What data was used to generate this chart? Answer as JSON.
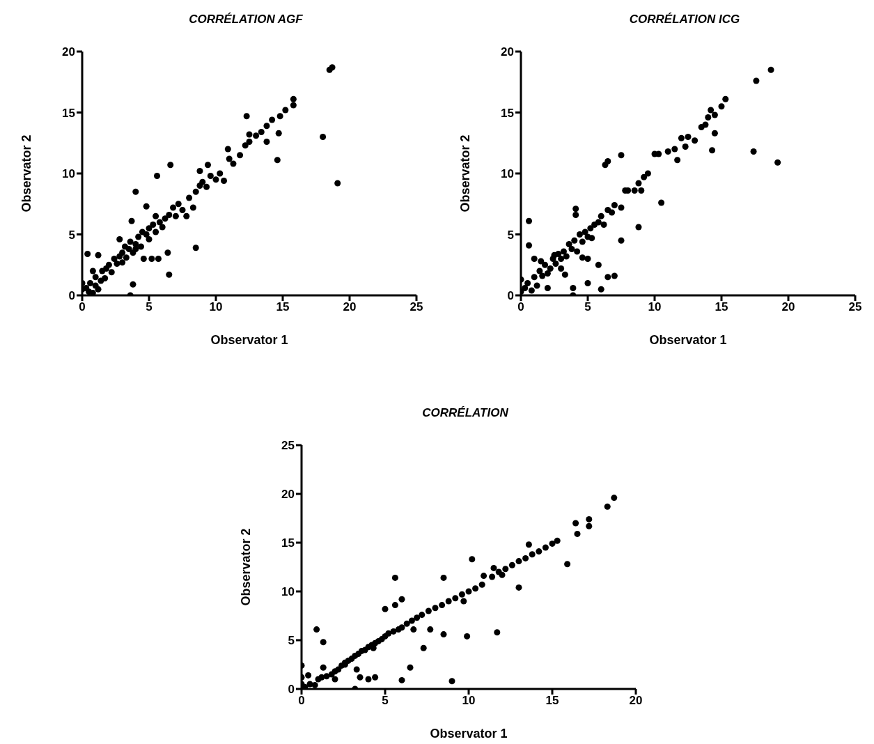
{
  "chart_data": [
    {
      "type": "scatter",
      "title": "CORRÉLATION AGF",
      "xlabel": "Observator 1",
      "ylabel": "Observator 2",
      "marker": "circle",
      "xlim": [
        0,
        25
      ],
      "ylim": [
        0,
        20
      ],
      "xticks": [
        0,
        5,
        10,
        15,
        20,
        25
      ],
      "yticks": [
        0,
        5,
        10,
        15,
        20
      ],
      "series": [
        {
          "color": "#000000",
          "x": [
            18.5,
            18.7,
            18,
            19.1,
            14.6,
            12.3,
            8.5,
            6.5,
            3.6,
            3.8,
            4,
            5.6,
            6.6,
            3.7,
            15.8,
            15.8,
            1.2,
            0.4,
            0,
            0,
            0.3,
            0.5,
            0.6,
            0.8,
            1,
            1,
            1.2,
            1.4,
            1.5,
            1.7,
            1.8,
            2,
            2.2,
            2.4,
            2.6,
            2.8,
            3,
            3,
            3.2,
            3.3,
            3.5,
            3.6,
            3.8,
            4,
            4,
            4.2,
            4.4,
            4.5,
            4.6,
            4.8,
            5,
            5,
            5.2,
            5.3,
            5.5,
            5.7,
            5.8,
            6,
            6.2,
            6.4,
            6.5,
            6.8,
            7,
            7.2,
            7.5,
            7.8,
            8,
            8.3,
            8.5,
            8.8,
            9,
            9.3,
            9.6,
            10,
            10.3,
            10.6,
            11,
            11.3,
            11.8,
            12.2,
            12.5,
            13,
            13.4,
            13.8,
            14.2,
            14.8,
            15.2,
            14.7,
            13.8,
            12.5,
            10.9,
            9.4,
            8.8,
            2.8,
            0.8,
            4.8,
            5.5
          ],
          "values": [
            18.5,
            18.7,
            13,
            9.2,
            11.1,
            14.7,
            3.9,
            1.7,
            0,
            0.9,
            8.5,
            9.8,
            10.7,
            6.1,
            16.1,
            15.6,
            3.3,
            3.4,
            0.5,
            1,
            0.6,
            0.3,
            1,
            0.2,
            0.8,
            1.5,
            0.5,
            1.2,
            2,
            1.4,
            2.2,
            2.5,
            1.9,
            3,
            2.6,
            3.2,
            2.7,
            3.5,
            4,
            3.1,
            3.8,
            4.4,
            3.5,
            4.2,
            3.8,
            4.8,
            4,
            5.2,
            3,
            5,
            4.6,
            5.5,
            3,
            5.8,
            5.2,
            3,
            6,
            5.6,
            6.3,
            3.5,
            6.6,
            7.2,
            6.5,
            7.5,
            7,
            6.5,
            8,
            7.2,
            8.5,
            9,
            9.3,
            8.9,
            9.8,
            9.5,
            10,
            9.4,
            11.2,
            10.8,
            11.5,
            12.3,
            12.6,
            13.1,
            13.4,
            13.9,
            14.4,
            14.7,
            15.2,
            13.3,
            12.6,
            13.2,
            12,
            10.7,
            10.2,
            4.6,
            2,
            7.3,
            6.5
          ]
        }
      ]
    },
    {
      "type": "scatter",
      "title": "CORRÉLATION ICG",
      "xlabel": "Observator 1",
      "ylabel": "Observator 2",
      "marker": "circle",
      "xlim": [
        0,
        25
      ],
      "ylim": [
        0,
        20
      ],
      "xticks": [
        0,
        5,
        10,
        15,
        20,
        25
      ],
      "yticks": [
        0,
        5,
        10,
        15,
        20
      ],
      "series": [
        {
          "color": "#000000",
          "x": [
            17.6,
            18.7,
            17.4,
            19.2,
            14.3,
            10.5,
            8.8,
            6.3,
            6.5,
            7.5,
            4.1,
            4.1,
            0.6,
            0.6,
            3.9,
            3.9,
            5,
            6,
            6.5,
            7,
            7.5,
            15.3,
            5.8,
            0,
            0,
            0.3,
            0.5,
            0.8,
            1,
            1.2,
            1.4,
            1.6,
            1.8,
            2,
            2.2,
            2.4,
            2.6,
            2.8,
            3,
            3,
            3.2,
            3.4,
            3.6,
            3.8,
            4,
            4.2,
            4.4,
            4.6,
            4.8,
            5,
            5,
            5.2,
            5.5,
            5.8,
            6,
            6.2,
            6.5,
            6.8,
            7,
            7.5,
            8,
            8.5,
            8.8,
            9,
            9.2,
            9.5,
            10,
            10.3,
            11,
            11.5,
            12,
            12.3,
            12.5,
            13,
            13.5,
            13.8,
            14,
            14.2,
            14.5,
            15,
            14.5,
            11.7,
            2,
            1,
            1.5,
            2.5,
            3.3,
            4.6,
            5.3,
            7.8
          ],
          "values": [
            17.6,
            18.5,
            11.8,
            10.9,
            11.9,
            7.6,
            5.6,
            10.7,
            11,
            11.5,
            7.1,
            6.6,
            6.1,
            4.1,
            0.6,
            0,
            1,
            0.5,
            1.5,
            1.6,
            4.5,
            16.1,
            2.5,
            0.3,
            1.3,
            0.6,
            1,
            0.4,
            1.5,
            0.8,
            2,
            1.6,
            2.5,
            1.8,
            2.2,
            3,
            2.6,
            3.4,
            3,
            2.2,
            3.6,
            3.2,
            4.2,
            3.8,
            4.5,
            3.6,
            5,
            4.4,
            5.2,
            4.8,
            3,
            5.5,
            5.8,
            6,
            6.5,
            5.8,
            7,
            6.8,
            7.4,
            7.2,
            8.6,
            8.6,
            9.2,
            8.6,
            9.7,
            10,
            11.6,
            11.6,
            11.8,
            12,
            12.9,
            12.2,
            13,
            12.7,
            13.8,
            14,
            14.6,
            15.2,
            14.8,
            15.5,
            13.3,
            11.1,
            0.6,
            3,
            2.8,
            3.3,
            1.7,
            3.1,
            4.7,
            8.6
          ]
        }
      ]
    },
    {
      "type": "scatter",
      "title": "CORRÉLATION",
      "xlabel": "Observator 1",
      "ylabel": "Observator 2",
      "marker": "circle",
      "xlim": [
        0,
        20
      ],
      "ylim": [
        0,
        25
      ],
      "xticks": [
        0,
        5,
        10,
        15,
        20
      ],
      "yticks": [
        0,
        5,
        10,
        15,
        20,
        25
      ],
      "series": [
        {
          "color": "#000000",
          "x": [
            18.7,
            18.3,
            17.2,
            17.2,
            16.4,
            16.5,
            15.9,
            13,
            11.7,
            9,
            8.5,
            6,
            6.5,
            5.6,
            8.5,
            10.2,
            0.9,
            1.3,
            3.2,
            4,
            7.3,
            9.9,
            5,
            5.6,
            6,
            2.6,
            3.5,
            4.4,
            0,
            0,
            0,
            0.2,
            0.5,
            0.8,
            1,
            1.2,
            1.5,
            1.8,
            2,
            2.2,
            2.4,
            2.6,
            2.8,
            3,
            3.2,
            3.4,
            3.6,
            3.8,
            4,
            4.2,
            4.4,
            4.6,
            4.8,
            5,
            5.2,
            5.5,
            5.8,
            6,
            6.3,
            6.6,
            6.9,
            7.2,
            7.6,
            8,
            8.4,
            8.8,
            9.2,
            9.6,
            10,
            10.4,
            10.8,
            11.4,
            11.8,
            12.2,
            12.6,
            13,
            13.4,
            13.8,
            14.2,
            14.6,
            15,
            15.3,
            12,
            13.6,
            9.7,
            11.5,
            2,
            1.3,
            0.4,
            3.3,
            4.3,
            6.7,
            7.7,
            10.9
          ],
          "values": [
            19.6,
            18.7,
            17.4,
            16.7,
            17,
            15.9,
            12.8,
            10.4,
            5.8,
            0.8,
            5.6,
            0.9,
            2.2,
            11.4,
            11.4,
            13.3,
            6.1,
            4.8,
            0,
            1,
            4.2,
            5.4,
            8.2,
            8.6,
            9.2,
            2.5,
            1.2,
            1.2,
            2.4,
            1.2,
            0.5,
            0.2,
            0.5,
            0.4,
            1,
            1.2,
            1.3,
            1.5,
            1.8,
            2,
            2.4,
            2.7,
            2.9,
            3.1,
            3.4,
            3.6,
            3.9,
            4,
            4.3,
            4.5,
            4.7,
            4.9,
            5.1,
            5.4,
            5.7,
            5.9,
            6.1,
            6.3,
            6.7,
            7,
            7.3,
            7.6,
            8,
            8.3,
            8.6,
            9,
            9.3,
            9.7,
            10,
            10.3,
            10.7,
            11.5,
            12,
            12.3,
            12.7,
            13.1,
            13.4,
            13.8,
            14.1,
            14.5,
            14.9,
            15.2,
            11.7,
            14.8,
            9,
            12.4,
            1,
            2.2,
            1.4,
            2,
            4.2,
            6.1,
            6.1,
            11.6
          ]
        }
      ]
    }
  ]
}
